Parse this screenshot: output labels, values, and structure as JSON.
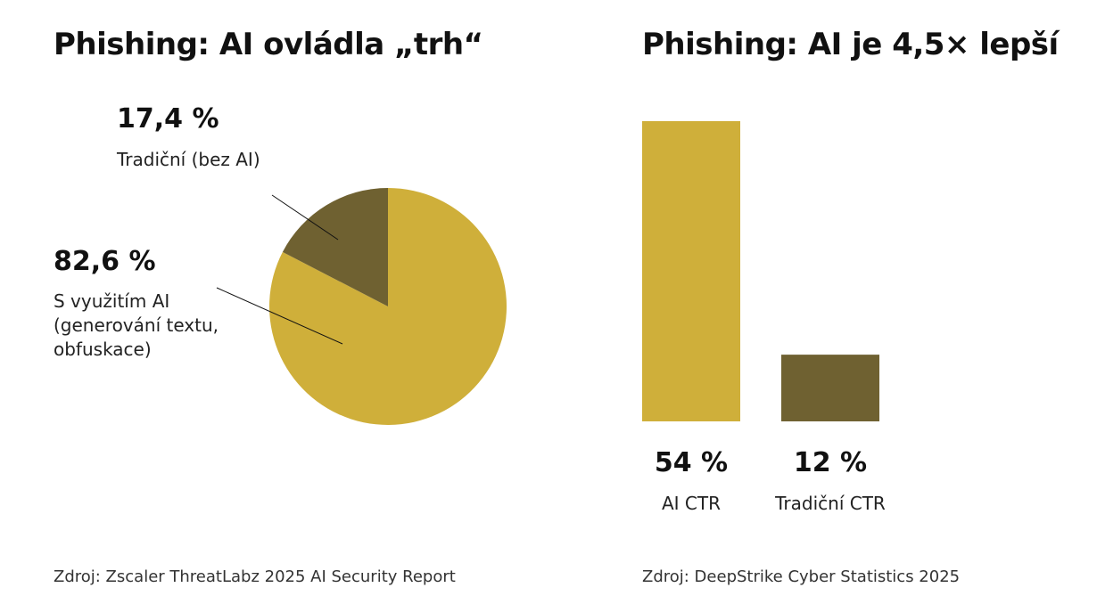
{
  "colors": {
    "ai": "#cfaf3a",
    "traditional": "#6f6131",
    "line": "#111111"
  },
  "left_chart": {
    "title": "Phishing: AI ovládla „trh“",
    "source": "Zdroj: Zscaler ThreatLabz 2025 AI Security Report"
  },
  "right_chart": {
    "title": "Phishing: AI je 4,5× lepší",
    "source": "Zdroj: DeepStrike Cyber Statistics 2025"
  },
  "chart_data": [
    {
      "type": "pie",
      "title": "Phishing: AI ovládla „trh“",
      "slices": [
        {
          "value": 82.6,
          "value_label": "82,6 %",
          "label_lines": [
            "S využitím AI",
            "(generování textu,",
            "obfuskace)"
          ],
          "color": "#cfaf3a"
        },
        {
          "value": 17.4,
          "value_label": "17,4 %",
          "label_lines": [
            "Tradiční (bez AI)"
          ],
          "color": "#6f6131"
        }
      ]
    },
    {
      "type": "bar",
      "title": "Phishing: AI je 4,5× lepší",
      "categories": [
        "AI CTR",
        "Tradiční CTR"
      ],
      "values": [
        54,
        12
      ],
      "value_labels": [
        "54 %",
        "12 %"
      ],
      "colors": [
        "#cfaf3a",
        "#6f6131"
      ],
      "ylim": [
        0,
        54
      ]
    }
  ]
}
